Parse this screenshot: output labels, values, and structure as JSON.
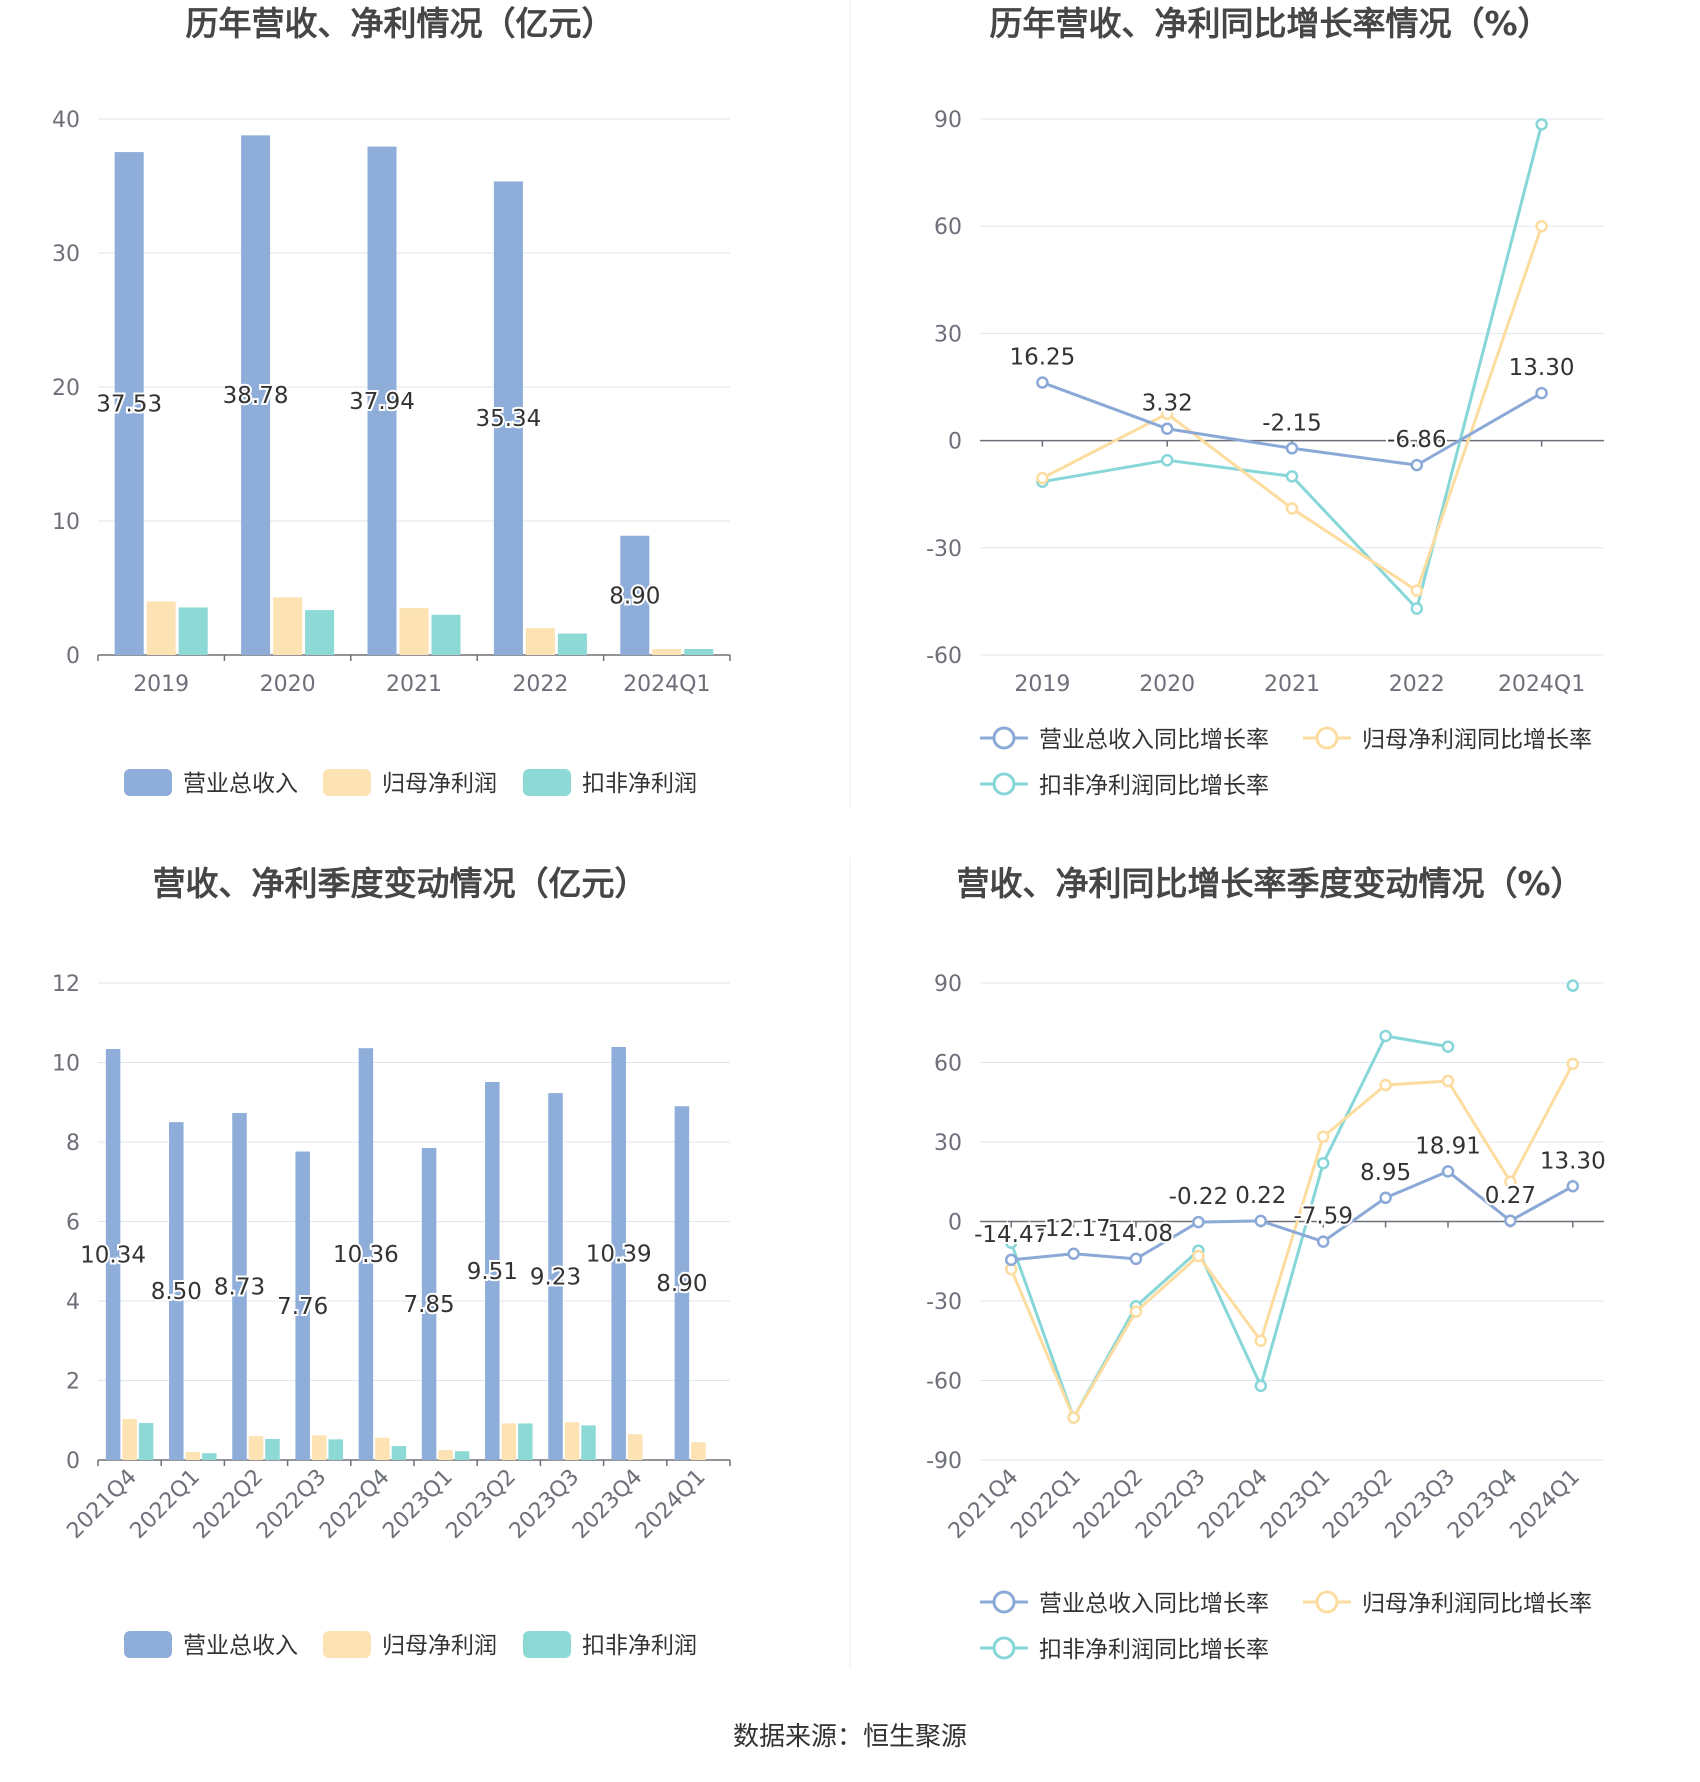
{
  "colors": {
    "revenue": "#8eadd9",
    "net_profit": "#fde2b3",
    "deducted_profit": "#8dd9d6",
    "revenue_line": "#8ba9d7",
    "net_profit_line": "#fddca0",
    "deducted_line": "#87d6d8",
    "grid": "#e0e6f1",
    "axis": "#6e7079",
    "divider": "#eeeeee"
  },
  "source": "数据来源：恒生聚源",
  "chart_data": [
    {
      "id": "annual_amount",
      "type": "bar",
      "title": "历年营收、净利情况（亿元）",
      "categories": [
        "2019",
        "2020",
        "2021",
        "2022",
        "2024Q1"
      ],
      "ylim": [
        0,
        40
      ],
      "yticks": [
        0,
        10,
        20,
        30,
        40
      ],
      "series": [
        {
          "name": "营业总收入",
          "values": [
            37.53,
            38.78,
            37.94,
            35.34,
            8.9
          ],
          "labels": [
            "37.53",
            "38.78",
            "37.94",
            "35.34",
            "8.90"
          ]
        },
        {
          "name": "归母净利润",
          "values": [
            4.0,
            4.3,
            3.5,
            2.0,
            0.45
          ]
        },
        {
          "name": "扣非净利润",
          "values": [
            3.55,
            3.35,
            3.0,
            1.6,
            0.45
          ]
        }
      ],
      "legend": [
        "营业总收入",
        "归母净利润",
        "扣非净利润"
      ]
    },
    {
      "id": "annual_growth",
      "type": "line",
      "title": "历年营收、净利同比增长率情况（%）",
      "categories": [
        "2019",
        "2020",
        "2021",
        "2022",
        "2024Q1"
      ],
      "ylim": [
        -60,
        90
      ],
      "yticks": [
        -60,
        -30,
        0,
        30,
        60,
        90
      ],
      "series": [
        {
          "name": "营业总收入同比增长率",
          "values": [
            16.25,
            3.32,
            -2.15,
            -6.86,
            13.3
          ],
          "labels": [
            "16.25",
            "3.32",
            "-2.15",
            "-6.86",
            "13.30"
          ]
        },
        {
          "name": "归母净利润同比增长率",
          "values": [
            -10.5,
            7.5,
            -19.0,
            -42.0,
            60.0
          ]
        },
        {
          "name": "扣非净利润同比增长率",
          "values": [
            -11.5,
            -5.5,
            -10.0,
            -47.0,
            88.5
          ]
        }
      ],
      "legend": [
        "营业总收入同比增长率",
        "归母净利润同比增长率",
        "扣非净利润同比增长率"
      ]
    },
    {
      "id": "quarterly_amount",
      "type": "bar",
      "title": "营收、净利季度变动情况（亿元）",
      "categories": [
        "2021Q4",
        "2022Q1",
        "2022Q2",
        "2022Q3",
        "2022Q4",
        "2023Q1",
        "2023Q2",
        "2023Q3",
        "2023Q4",
        "2024Q1"
      ],
      "ylim": [
        0,
        12
      ],
      "yticks": [
        0,
        2,
        4,
        6,
        8,
        10,
        12
      ],
      "series": [
        {
          "name": "营业总收入",
          "values": [
            10.34,
            8.5,
            8.73,
            7.76,
            10.36,
            7.85,
            9.51,
            9.23,
            10.39,
            8.9
          ],
          "labels": [
            "10.34",
            "8.50",
            "8.73",
            "7.76",
            "10.36",
            "7.85",
            "9.51",
            "9.23",
            "10.39",
            "8.90"
          ]
        },
        {
          "name": "归母净利润",
          "values": [
            1.03,
            0.2,
            0.6,
            0.62,
            0.56,
            0.25,
            0.92,
            0.95,
            0.65,
            0.45
          ]
        },
        {
          "name": "扣非净利润",
          "values": [
            0.93,
            0.17,
            0.53,
            0.52,
            0.35,
            0.22,
            0.92,
            0.87,
            null,
            null
          ]
        }
      ],
      "legend": [
        "营业总收入",
        "归母净利润",
        "扣非净利润"
      ]
    },
    {
      "id": "quarterly_growth",
      "type": "line",
      "title": "营收、净利同比增长率季度变动情况（%）",
      "categories": [
        "2021Q4",
        "2022Q1",
        "2022Q2",
        "2022Q3",
        "2022Q4",
        "2023Q1",
        "2023Q2",
        "2023Q3",
        "2023Q4",
        "2024Q1"
      ],
      "ylim": [
        -90,
        90
      ],
      "yticks": [
        -90,
        -60,
        -30,
        0,
        30,
        60,
        90
      ],
      "series": [
        {
          "name": "营业总收入同比增长率",
          "values": [
            -14.47,
            -12.17,
            -14.08,
            -0.22,
            0.22,
            -7.59,
            8.95,
            18.91,
            0.27,
            13.3
          ],
          "labels": [
            "-14.47",
            "-12.17",
            "-14.08",
            "-0.22",
            "0.22",
            "-7.59",
            "8.95",
            "18.91",
            "0.27",
            "13.30"
          ]
        },
        {
          "name": "归母净利润同比增长率",
          "values": [
            -18.0,
            -74.0,
            -34.0,
            -13.0,
            -45.0,
            32.0,
            51.5,
            53.0,
            15.0,
            59.5
          ]
        },
        {
          "name": "扣非净利润同比增长率",
          "values": [
            -8.0,
            -74.0,
            -32.0,
            -11.0,
            -62.0,
            22.0,
            70.0,
            66.0,
            null,
            89.0
          ]
        }
      ],
      "legend": [
        "营业总收入同比增长率",
        "归母净利润同比增长率",
        "扣非净利润同比增长率"
      ]
    }
  ]
}
